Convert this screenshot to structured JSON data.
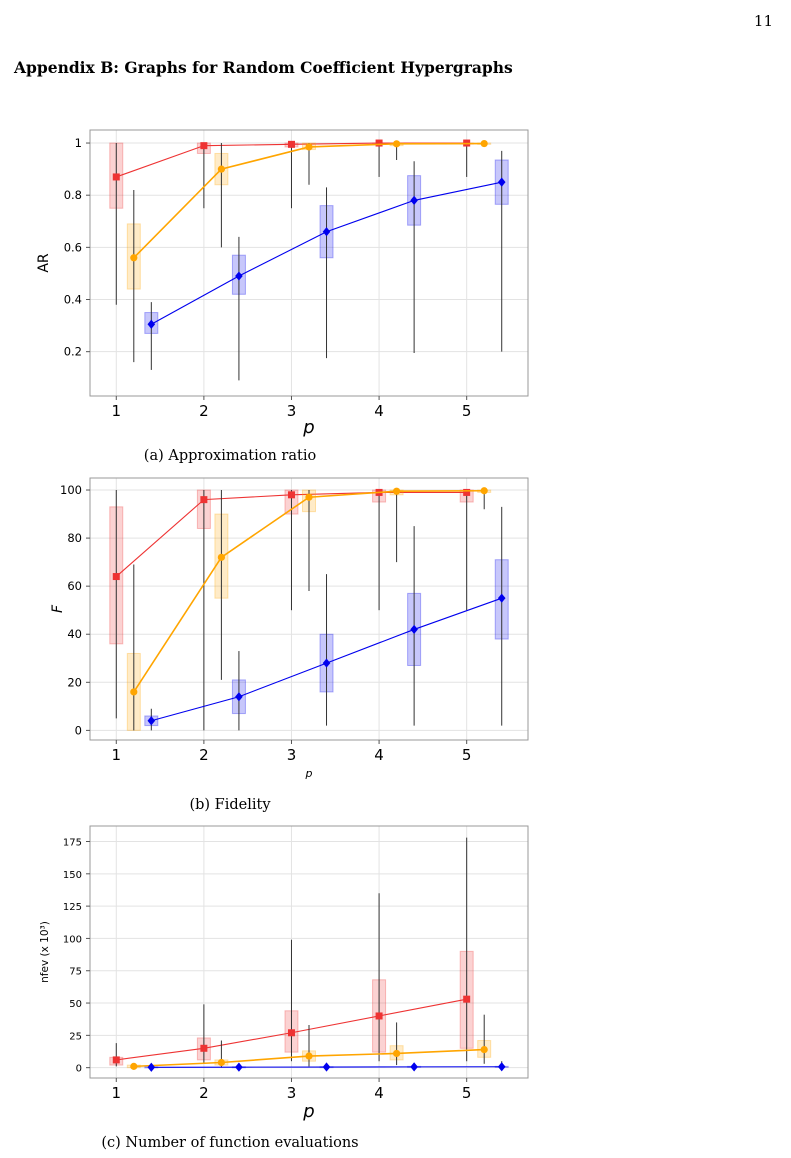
{
  "page_number": "11",
  "section_heading": "Appendix B: Graphs for Random Coefficient Hypergraphs",
  "colors": {
    "red": "#ee3333",
    "orange": "#ffa500",
    "blue": "#0000ee",
    "whisker": "#333333"
  },
  "chart_data": [
    {
      "type": "box",
      "caption": "(a) Approximation ratio",
      "xlabel": "p",
      "ylabel": "AR",
      "xlim": [
        0.7,
        5.7
      ],
      "ylim": [
        0.03,
        1.05
      ],
      "xticks": [
        1,
        2,
        3,
        4,
        5
      ],
      "yticks": [
        0.2,
        0.4,
        0.6,
        0.8,
        1
      ],
      "ytick_labels": [
        "0.2",
        "0.4",
        "0.6",
        "0.8",
        "1"
      ],
      "grid": true,
      "series": [
        {
          "color_key": "red",
          "marker": "square",
          "offset": 0,
          "x": [
            1,
            2,
            3,
            4,
            5
          ],
          "mean": [
            0.87,
            0.99,
            0.995,
            1.0,
            1.0
          ],
          "q1": [
            0.75,
            0.96,
            0.985,
            0.995,
            0.998
          ],
          "q3": [
            1.0,
            1.0,
            1.0,
            1.0,
            1.0
          ],
          "min": [
            0.38,
            0.75,
            0.75,
            0.87,
            0.87
          ],
          "max": [
            1.0,
            1.0,
            1.0,
            1.0,
            1.0
          ]
        },
        {
          "color_key": "orange",
          "marker": "circle",
          "offset": 0.2,
          "x": [
            1,
            2,
            3,
            4,
            5
          ],
          "mean": [
            0.56,
            0.9,
            0.985,
            0.997,
            0.998
          ],
          "q1": [
            0.44,
            0.84,
            0.975,
            0.99,
            0.995
          ],
          "q3": [
            0.69,
            0.96,
            1.0,
            1.0,
            1.0
          ],
          "min": [
            0.16,
            0.6,
            0.84,
            0.935,
            0.99
          ],
          "max": [
            0.82,
            1.0,
            1.0,
            1.0,
            1.0
          ]
        },
        {
          "color_key": "blue",
          "marker": "diamond",
          "offset": 0.4,
          "x": [
            1,
            2,
            3,
            4,
            5
          ],
          "mean": [
            0.305,
            0.49,
            0.66,
            0.78,
            0.85
          ],
          "q1": [
            0.27,
            0.42,
            0.56,
            0.685,
            0.765
          ],
          "q3": [
            0.35,
            0.57,
            0.76,
            0.875,
            0.935
          ],
          "min": [
            0.13,
            0.09,
            0.175,
            0.195,
            0.2
          ],
          "max": [
            0.39,
            0.64,
            0.83,
            0.93,
            0.97
          ]
        }
      ]
    },
    {
      "type": "box",
      "caption": "(b) Fidelity",
      "xlabel": "p",
      "ylabel": "F",
      "xlim": [
        0.7,
        5.7
      ],
      "ylim": [
        -4,
        105
      ],
      "xticks": [
        1,
        2,
        3,
        4,
        5
      ],
      "yticks": [
        0,
        20,
        40,
        60,
        80,
        100
      ],
      "ytick_labels": [
        "0",
        "20",
        "40",
        "60",
        "80",
        "100"
      ],
      "grid": true,
      "series": [
        {
          "color_key": "red",
          "marker": "square",
          "offset": 0,
          "x": [
            1,
            2,
            3,
            4,
            5
          ],
          "mean": [
            64,
            96,
            98,
            99,
            99
          ],
          "q1": [
            36,
            84,
            90,
            95,
            95
          ],
          "q3": [
            93,
            100,
            100,
            100,
            100
          ],
          "min": [
            5,
            0,
            50,
            50,
            50
          ],
          "max": [
            100,
            100,
            100,
            100,
            100
          ]
        },
        {
          "color_key": "orange",
          "marker": "circle",
          "offset": 0.2,
          "x": [
            1,
            2,
            3,
            4,
            5
          ],
          "mean": [
            16,
            72,
            97,
            99.5,
            99.7
          ],
          "q1": [
            0,
            55,
            91,
            98,
            99
          ],
          "q3": [
            32,
            90,
            100,
            100,
            100
          ],
          "min": [
            0,
            21,
            58,
            70,
            92
          ],
          "max": [
            69,
            100,
            100,
            100,
            100
          ]
        },
        {
          "color_key": "blue",
          "marker": "diamond",
          "offset": 0.4,
          "x": [
            1,
            2,
            3,
            4,
            5
          ],
          "mean": [
            4,
            14,
            28,
            42,
            55
          ],
          "q1": [
            2,
            7,
            16,
            27,
            38
          ],
          "q3": [
            6,
            21,
            40,
            57,
            71
          ],
          "min": [
            0,
            0,
            2,
            2,
            2
          ],
          "max": [
            9,
            33,
            65,
            85,
            93
          ]
        }
      ]
    },
    {
      "type": "box",
      "caption": "(c) Number of function evaluations",
      "xlabel": "p",
      "ylabel": "nfev (x 10³)",
      "xlim": [
        0.7,
        5.7
      ],
      "ylim": [
        -8,
        187
      ],
      "xticks": [
        1,
        2,
        3,
        4,
        5
      ],
      "yticks": [
        0,
        25,
        50,
        75,
        100,
        125,
        150,
        175
      ],
      "ytick_labels": [
        "0",
        "25",
        "50",
        "75",
        "100",
        "125",
        "150",
        "175"
      ],
      "grid": true,
      "series": [
        {
          "color_key": "red",
          "marker": "square",
          "offset": 0,
          "x": [
            1,
            2,
            3,
            4,
            5
          ],
          "mean": [
            6,
            15,
            27,
            40,
            53
          ],
          "q1": [
            2,
            6,
            12,
            12,
            15
          ],
          "q3": [
            8,
            23,
            44,
            68,
            90
          ],
          "min": [
            1,
            3,
            5,
            5,
            5
          ],
          "max": [
            19,
            49,
            99,
            135,
            178
          ]
        },
        {
          "color_key": "orange",
          "marker": "circle",
          "offset": 0.2,
          "x": [
            1,
            2,
            3,
            4,
            5
          ],
          "mean": [
            1,
            4,
            9,
            11,
            14
          ],
          "q1": [
            0,
            2,
            5,
            6,
            8
          ],
          "q3": [
            2,
            6,
            13,
            17,
            21
          ],
          "min": [
            0,
            0,
            1,
            2,
            3
          ],
          "max": [
            3,
            21,
            33,
            35,
            41
          ]
        },
        {
          "color_key": "blue",
          "marker": "diamond",
          "offset": 0.4,
          "x": [
            1,
            2,
            3,
            4,
            5
          ],
          "mean": [
            0.3,
            0.4,
            0.5,
            0.6,
            0.7
          ],
          "q1": [
            0.1,
            0.2,
            0.2,
            0.3,
            0.3
          ],
          "q3": [
            0.6,
            0.7,
            0.8,
            1.0,
            1.0
          ],
          "min": [
            0,
            0,
            0,
            0,
            0
          ],
          "max": [
            1,
            1,
            1.5,
            2,
            5
          ]
        }
      ]
    }
  ]
}
